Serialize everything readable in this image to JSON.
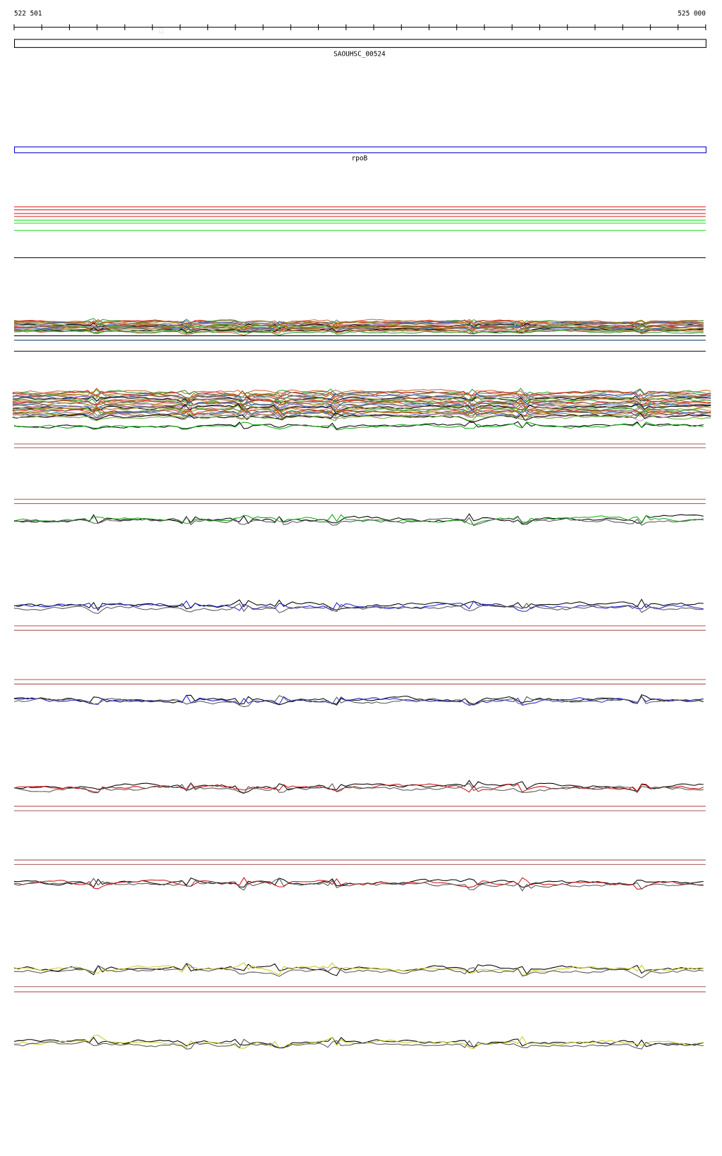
{
  "ruler": {
    "start": "522 501",
    "end": "525 000"
  },
  "tracks": [
    {
      "label": "SAOUHSC_00524"
    },
    {
      "label": "rpoB"
    }
  ]
}
